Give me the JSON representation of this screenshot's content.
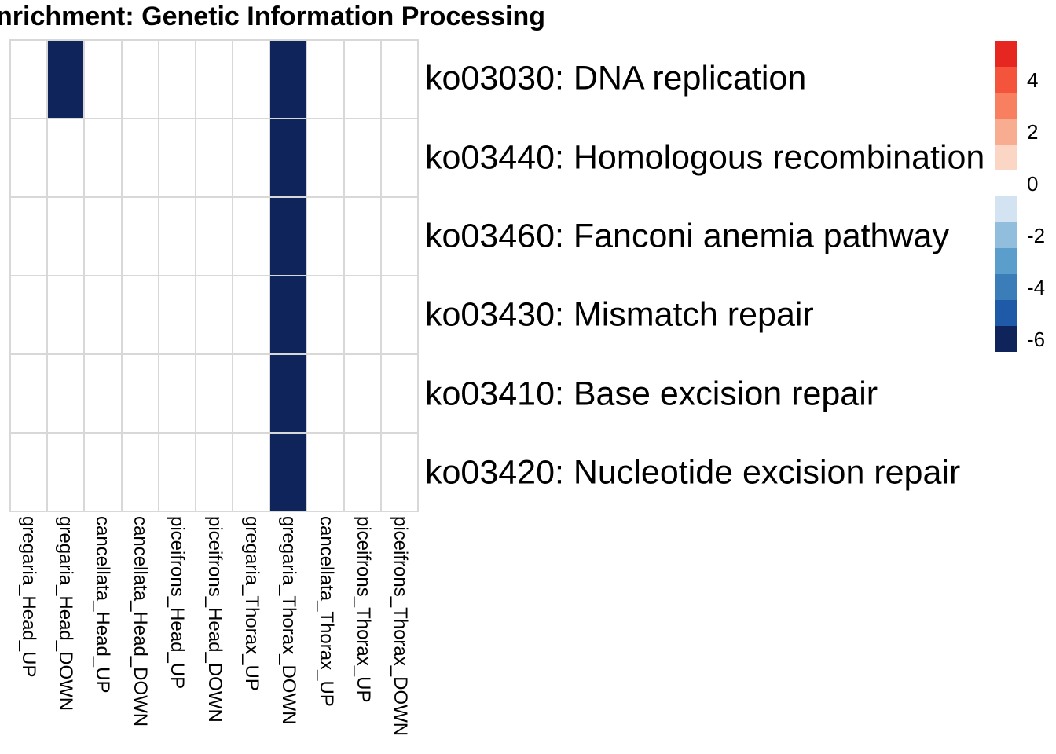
{
  "chart_data": {
    "type": "heatmap",
    "title": "nrichment: Genetic Information Processing",
    "columns": [
      "gregaria_Head_UP",
      "gregaria_Head_DOWN",
      "cancellata_Head_UP",
      "cancellata_Head_DOWN",
      "piceifrons_Head_UP",
      "piceifrons_Head_DOWN",
      "gregaria_Thorax_UP",
      "gregaria_Thorax_DOWN",
      "cancellata_Thorax_UP",
      "piceifrons_Thorax_UP",
      "piceifrons_Thorax_DOWN"
    ],
    "rows": [
      "ko03030: DNA replication",
      "ko03440: Homologous recombination",
      "ko03460: Fanconi anemia pathway",
      "ko03430: Mismatch repair",
      "ko03410: Base excision repair",
      "ko03420: Nucleotide excision repair"
    ],
    "matrix": [
      [
        0,
        -6,
        0,
        0,
        0,
        0,
        0,
        -6,
        0,
        0,
        0
      ],
      [
        0,
        0,
        0,
        0,
        0,
        0,
        0,
        -6,
        0,
        0,
        0
      ],
      [
        0,
        0,
        0,
        0,
        0,
        0,
        0,
        -6,
        0,
        0,
        0
      ],
      [
        0,
        0,
        0,
        0,
        0,
        0,
        0,
        -6,
        0,
        0,
        0
      ],
      [
        0,
        0,
        0,
        0,
        0,
        0,
        0,
        -6,
        0,
        0,
        0
      ],
      [
        0,
        0,
        0,
        0,
        0,
        0,
        0,
        -6,
        0,
        0,
        0
      ]
    ],
    "value_colors": {
      "0": "#ffffff",
      "-6": "#10245c"
    },
    "grid_line_color": "#d8d8d8",
    "legend": {
      "position": "right",
      "bin_values": [
        5,
        4,
        3,
        2,
        1,
        0,
        -1,
        -2,
        -3,
        -4,
        -5,
        -6
      ],
      "bin_colors": [
        "#e62621",
        "#f5543c",
        "#f87f60",
        "#f9ad90",
        "#fcd6c4",
        "#ffffff",
        "#d4e3f1",
        "#92bedd",
        "#5b9ecb",
        "#3a7db8",
        "#1f5aa8",
        "#10245c"
      ],
      "tick_labels": [
        "4",
        "2",
        "0",
        "-2",
        "-4",
        "-6"
      ]
    }
  }
}
